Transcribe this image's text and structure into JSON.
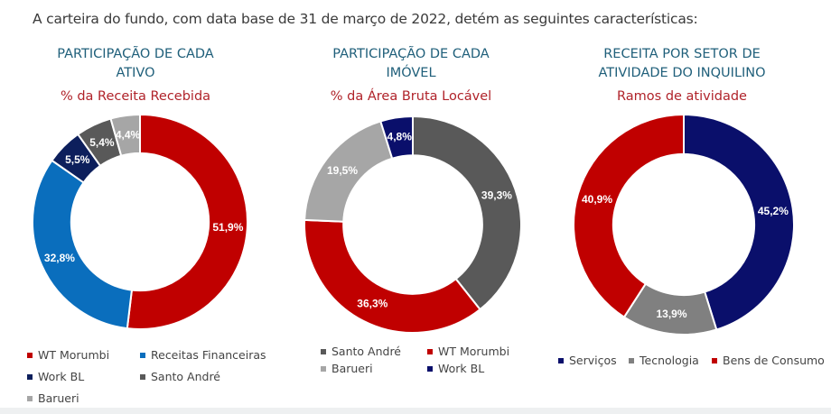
{
  "intro_text": "A carteira do fundo, com data base de 31 de março de 2022, detém as seguintes características:",
  "chart_data": [
    {
      "type": "pie",
      "title_line1": "PARTICIPAÇÃO DE CADA",
      "title_line2": "ATIVO",
      "subtitle": "% da Receita Recebida",
      "slices": [
        {
          "name": "WT Morumbi",
          "value": 51.9,
          "label": "51,9%",
          "color": "#c00000"
        },
        {
          "name": "Receitas Financeiras",
          "value": 32.8,
          "label": "32,8%",
          "color": "#0a6ebd"
        },
        {
          "name": "Work BL",
          "value": 5.5,
          "label": "5,5%",
          "color": "#0d1f5c"
        },
        {
          "name": "Santo André",
          "value": 5.4,
          "label": "5,4%",
          "color": "#595959"
        },
        {
          "name": "Barueri",
          "value": 4.4,
          "label": "4,4%",
          "color": "#a6a6a6"
        }
      ],
      "legend": [
        "WT Morumbi",
        "Receitas Financeiras",
        "Work BL",
        "Santo André",
        "Barueri"
      ]
    },
    {
      "type": "pie",
      "title_line1": "PARTICIPAÇÃO DE CADA",
      "title_line2": "IMÓVEL",
      "subtitle": "% da Área Bruta Locável",
      "slices": [
        {
          "name": "Santo André",
          "value": 39.3,
          "label": "39,3%",
          "color": "#595959"
        },
        {
          "name": "WT Morumbi",
          "value": 36.3,
          "label": "36,3%",
          "color": "#c00000"
        },
        {
          "name": "Barueri",
          "value": 19.5,
          "label": "19,5%",
          "color": "#a6a6a6"
        },
        {
          "name": "Work BL",
          "value": 4.8,
          "label": "4,8%",
          "color": "#0a0f6b"
        }
      ],
      "legend": [
        "Santo André",
        "WT Morumbi",
        "Barueri",
        "Work BL"
      ]
    },
    {
      "type": "pie",
      "title_line1": "RECEITA POR SETOR DE",
      "title_line2": "ATIVIDADE DO INQUILINO",
      "subtitle": "Ramos de atividade",
      "slices": [
        {
          "name": "Serviços",
          "value": 45.2,
          "label": "45,2%",
          "color": "#0a0f6b"
        },
        {
          "name": "Tecnologia",
          "value": 13.9,
          "label": "13,9%",
          "color": "#808080"
        },
        {
          "name": "Bens de Consumo",
          "value": 40.9,
          "label": "40,9%",
          "color": "#c00000"
        }
      ],
      "legend": [
        "Serviços",
        "Tecnologia",
        "Bens de Consumo"
      ]
    }
  ]
}
